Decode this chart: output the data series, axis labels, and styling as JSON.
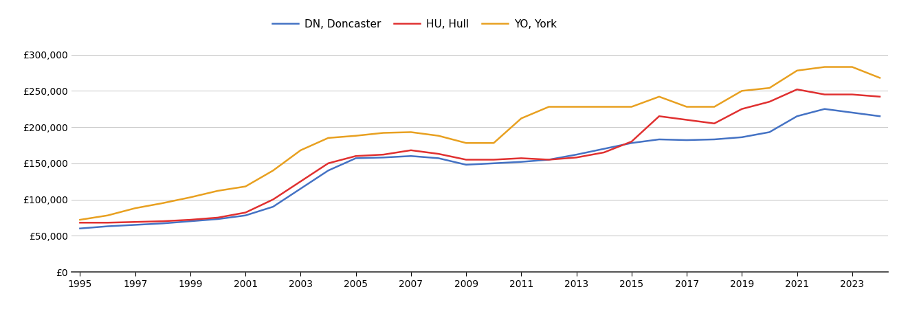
{
  "legend_labels": [
    "DN, Doncaster",
    "HU, Hull",
    "YO, York"
  ],
  "legend_colors": [
    "#4472c4",
    "#e03030",
    "#e8a020"
  ],
  "years": [
    1995,
    1996,
    1997,
    1998,
    1999,
    2000,
    2001,
    2002,
    2003,
    2004,
    2005,
    2006,
    2007,
    2008,
    2009,
    2010,
    2011,
    2012,
    2013,
    2014,
    2015,
    2016,
    2017,
    2018,
    2019,
    2020,
    2021,
    2022,
    2023,
    2024
  ],
  "DN_Doncaster": [
    60000,
    63000,
    65000,
    67000,
    70000,
    73000,
    78000,
    90000,
    115000,
    140000,
    157000,
    158000,
    160000,
    157000,
    148000,
    150000,
    152000,
    155000,
    162000,
    170000,
    178000,
    183000,
    182000,
    183000,
    186000,
    193000,
    215000,
    225000,
    220000,
    215000
  ],
  "HU_Hull": [
    68000,
    68000,
    69000,
    70000,
    72000,
    75000,
    82000,
    100000,
    125000,
    150000,
    160000,
    162000,
    168000,
    163000,
    155000,
    155000,
    157000,
    155000,
    158000,
    165000,
    180000,
    215000,
    210000,
    205000,
    225000,
    235000,
    252000,
    245000,
    245000,
    242000
  ],
  "YO_York": [
    72000,
    78000,
    88000,
    95000,
    103000,
    112000,
    118000,
    140000,
    168000,
    185000,
    188000,
    192000,
    193000,
    188000,
    178000,
    178000,
    212000,
    228000,
    228000,
    228000,
    228000,
    242000,
    228000,
    228000,
    250000,
    254000,
    278000,
    283000,
    283000,
    268000
  ],
  "ylim": [
    0,
    320000
  ],
  "yticks": [
    0,
    50000,
    100000,
    150000,
    200000,
    250000,
    300000
  ],
  "xticks": [
    1995,
    1997,
    1999,
    2001,
    2003,
    2005,
    2007,
    2009,
    2011,
    2013,
    2015,
    2017,
    2019,
    2021,
    2023
  ],
  "line_width": 1.8,
  "background_color": "#ffffff",
  "grid_color": "#cccccc",
  "figsize": [
    13.05,
    4.5
  ],
  "dpi": 100
}
